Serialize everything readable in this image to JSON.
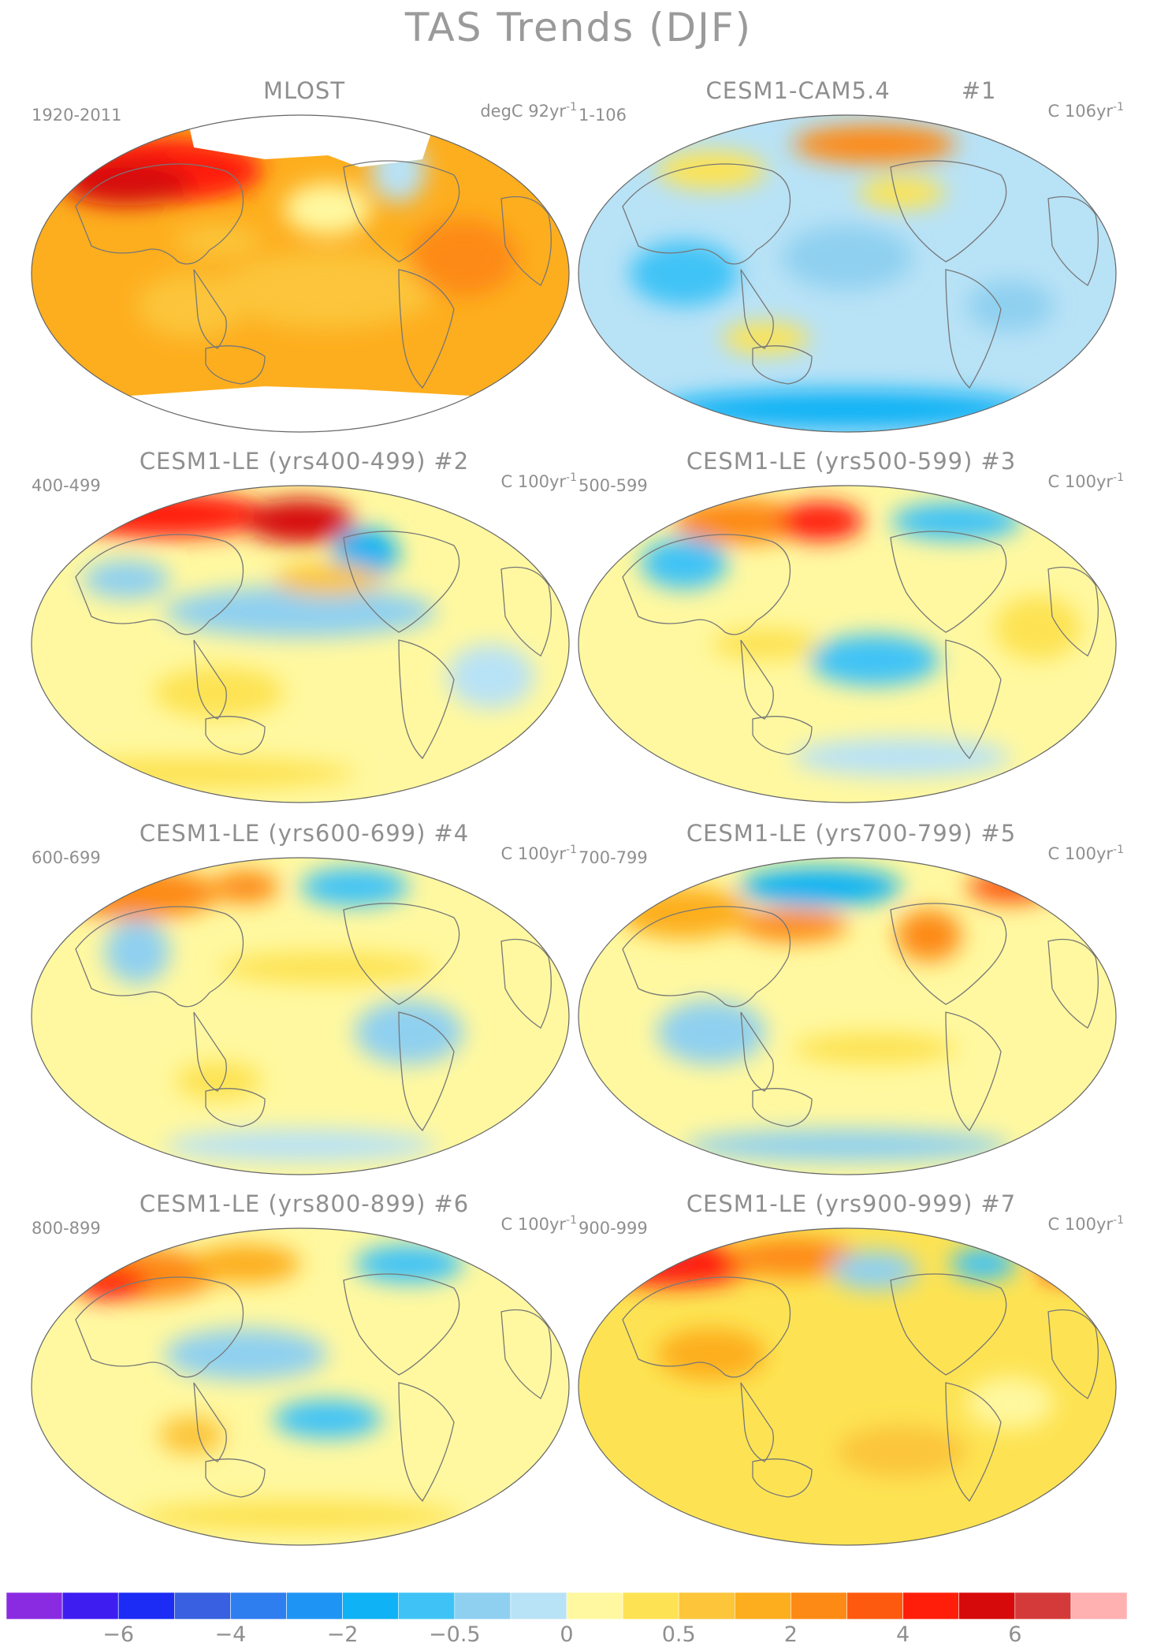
{
  "title": "TAS Trends (DJF)",
  "panels": [
    {
      "title": "MLOST",
      "number": "",
      "period": "1920-2011",
      "units_prefix": "degC 92yr",
      "units_exp": "-1",
      "pattern": "obs"
    },
    {
      "title": "CESM1-CAM5.4",
      "number": "#1",
      "period": "1-106",
      "units_prefix": "C 106yr",
      "units_exp": "-1",
      "pattern": "cool"
    },
    {
      "title": "CESM1-LE (yrs400-499)",
      "number": "#2",
      "period": "400-499",
      "units_prefix": "C 100yr",
      "units_exp": "-1",
      "pattern": "mix1"
    },
    {
      "title": "CESM1-LE (yrs500-599)",
      "number": "#3",
      "period": "500-599",
      "units_prefix": "C 100yr",
      "units_exp": "-1",
      "pattern": "mix2"
    },
    {
      "title": "CESM1-LE (yrs600-699)",
      "number": "#4",
      "period": "600-699",
      "units_prefix": "C 100yr",
      "units_exp": "-1",
      "pattern": "mix3"
    },
    {
      "title": "CESM1-LE (yrs700-799)",
      "number": "#5",
      "period": "700-799",
      "units_prefix": "C 100yr",
      "units_exp": "-1",
      "pattern": "mix4"
    },
    {
      "title": "CESM1-LE (yrs800-899)",
      "number": "#6",
      "period": "800-899",
      "units_prefix": "C 100yr",
      "units_exp": "-1",
      "pattern": "mix5"
    },
    {
      "title": "CESM1-LE (yrs900-999)",
      "number": "#7",
      "period": "900-999",
      "units_prefix": "C 100yr",
      "units_exp": "-1",
      "pattern": "mix6"
    }
  ],
  "colorbar": {
    "colors": [
      "#8a2be2",
      "#3e1df0",
      "#1c2cf5",
      "#3860e0",
      "#2f7ef0",
      "#1e95f5",
      "#0fb2f5",
      "#3fc3f6",
      "#8fd0f0",
      "#b8e2f6",
      "#fff8a0",
      "#fde353",
      "#fcc53a",
      "#fdae1e",
      "#fd8a14",
      "#fd5a10",
      "#ff1e0a",
      "#d60a0a",
      "#d43a3a",
      "#ffb0b0"
    ],
    "tick_labels": [
      {
        "text": "−6",
        "index": 2
      },
      {
        "text": "−4",
        "index": 4
      },
      {
        "text": "−2",
        "index": 6
      },
      {
        "text": "−0.5",
        "index": 8
      },
      {
        "text": "0",
        "index": 10
      },
      {
        "text": "0.5",
        "index": 12
      },
      {
        "text": "2",
        "index": 14
      },
      {
        "text": "4",
        "index": 16
      },
      {
        "text": "6",
        "index": 18
      }
    ]
  }
}
